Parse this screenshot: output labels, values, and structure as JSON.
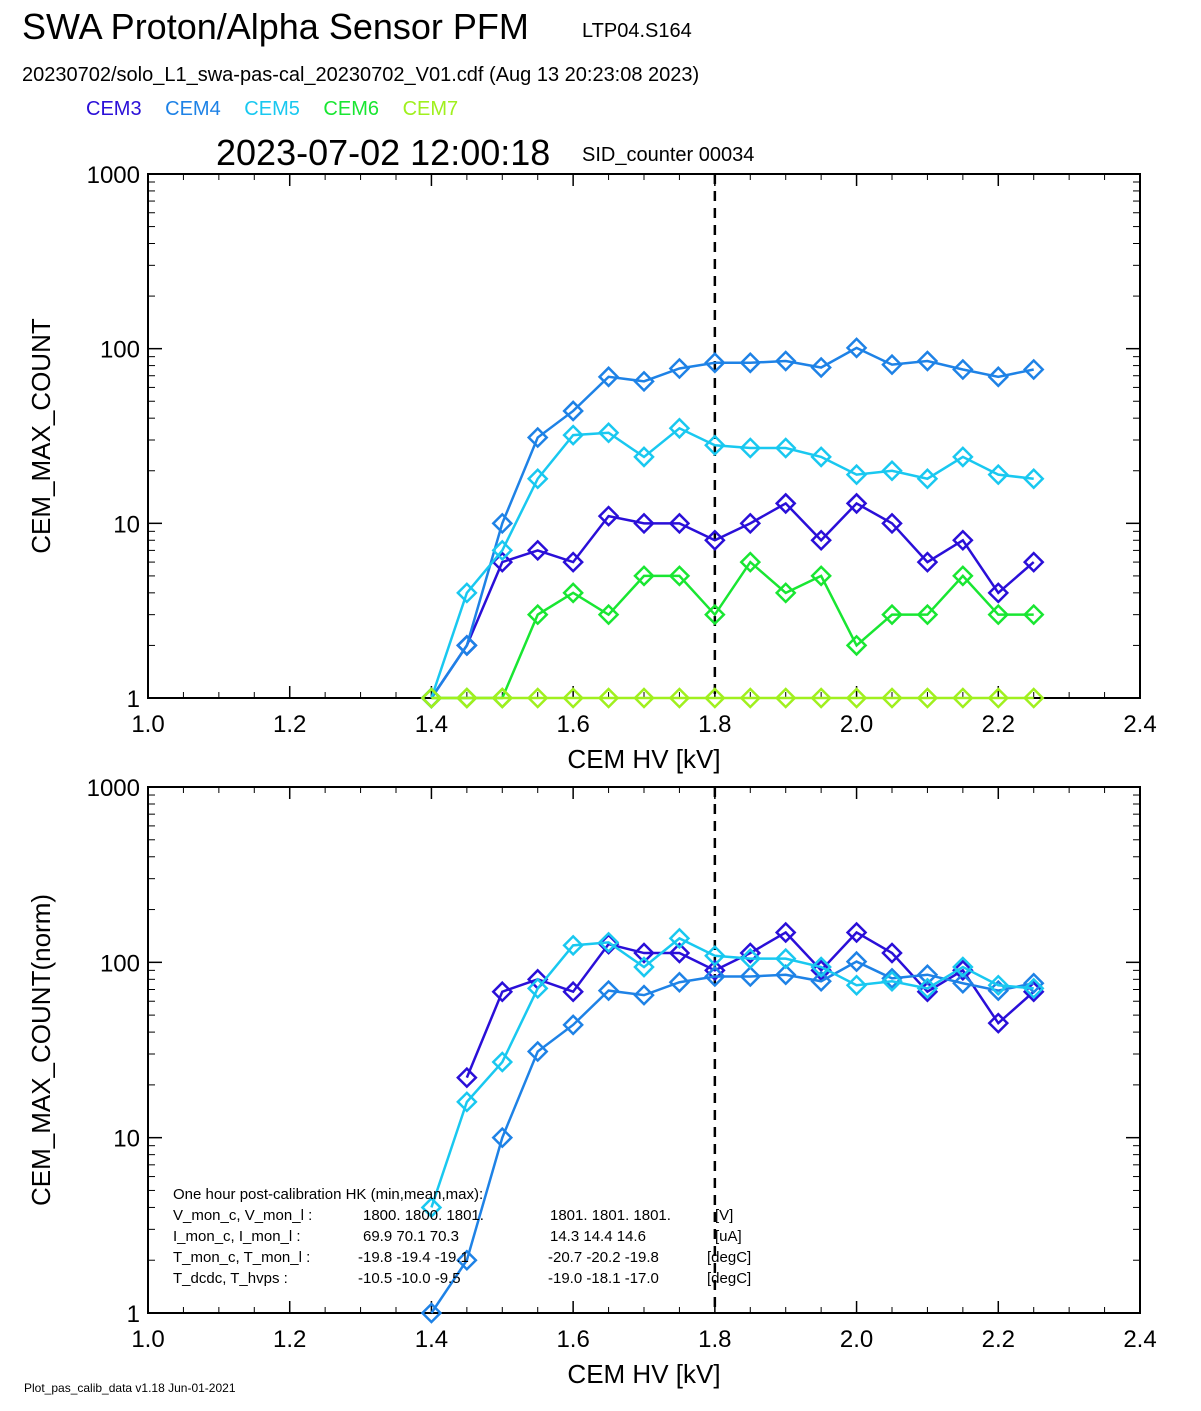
{
  "header": {
    "title": "SWA Proton/Alpha Sensor PFM",
    "id_label": "LTP04.S164",
    "file_line": "20230702/solo_L1_swa-pas-cal_20230702_V01.cdf  (Aug 13 20:23:08 2023)",
    "timestamp": "2023-07-02 12:00:18",
    "sid": "SID_counter 00034"
  },
  "legend": [
    {
      "name": "CEM3",
      "color": "#2a0fd8"
    },
    {
      "name": "CEM4",
      "color": "#1e82e6"
    },
    {
      "name": "CEM5",
      "color": "#19c8f0"
    },
    {
      "name": "CEM6",
      "color": "#19e632"
    },
    {
      "name": "CEM7",
      "color": "#a0f01e"
    }
  ],
  "hk_box": {
    "title": "One hour post-calibration HK (min,mean,max):",
    "rows": [
      {
        "label": "V_mon_c, V_mon_l :",
        "c": "1800.   1800.   1801.",
        "l": "1801.  1801.  1801.",
        "unit": "[V]"
      },
      {
        "label": "I_mon_c,  I_mon_l :",
        "c": "69.9   70.1   70.3",
        "l": "14.3   14.4   14.6",
        "unit": "[uA]"
      },
      {
        "label": "T_mon_c, T_mon_l :",
        "c": "-19.8  -19.4  -19.1",
        "l": "-20.7  -20.2  -19.8",
        "unit": "[degC]"
      },
      {
        "label": "T_dcdc,    T_hvps :",
        "c": "-10.5  -10.0   -9.5",
        "l": "-19.0  -18.1  -17.0",
        "unit": "[degC]"
      }
    ]
  },
  "footer": "Plot_pas_calib_data v1.18 Jun-01-2021",
  "chart_data": [
    {
      "type": "line",
      "xlabel": "CEM HV [kV]",
      "ylabel": "CEM_MAX_COUNT",
      "xlim": [
        1.0,
        2.4
      ],
      "ylim": [
        1,
        1000
      ],
      "yscale": "log",
      "xticks": [
        "1.0",
        "1.2",
        "1.4",
        "1.6",
        "1.8",
        "2.0",
        "2.2",
        "2.4"
      ],
      "yticks": [
        "1",
        "10",
        "100",
        "1000"
      ],
      "vline_x": 1.8,
      "x": [
        1.4,
        1.45,
        1.5,
        1.55,
        1.6,
        1.65,
        1.7,
        1.75,
        1.8,
        1.85,
        1.9,
        1.95,
        2.0,
        2.05,
        2.1,
        2.15,
        2.2,
        2.25
      ],
      "series": [
        {
          "name": "CEM3",
          "values": [
            1,
            2,
            6,
            7,
            6,
            11,
            10,
            10,
            8,
            10,
            13,
            8,
            13,
            10,
            6,
            8,
            4,
            6
          ]
        },
        {
          "name": "CEM4",
          "values": [
            1,
            2,
            10,
            31,
            44,
            69,
            65,
            77,
            83,
            83,
            85,
            78,
            101,
            81,
            85,
            76,
            69,
            76
          ]
        },
        {
          "name": "CEM5",
          "values": [
            1,
            4,
            7,
            18,
            32,
            33,
            24,
            35,
            28,
            27,
            27,
            24,
            19,
            20,
            18,
            24,
            19,
            18
          ]
        },
        {
          "name": "CEM6",
          "values": [
            1,
            1,
            1,
            3,
            4,
            3,
            5,
            5,
            3,
            6,
            4,
            5,
            2,
            3,
            3,
            5,
            3,
            3
          ]
        },
        {
          "name": "CEM7",
          "values": [
            1,
            1,
            1,
            1,
            1,
            1,
            1,
            1,
            1,
            1,
            1,
            1,
            1,
            1,
            1,
            1,
            1,
            1
          ]
        }
      ]
    },
    {
      "type": "line",
      "xlabel": "CEM HV [kV]",
      "ylabel": "CEM_MAX_COUNT(norm)",
      "xlim": [
        1.0,
        2.4
      ],
      "ylim": [
        1,
        1000
      ],
      "yscale": "log",
      "xticks": [
        "1.0",
        "1.2",
        "1.4",
        "1.6",
        "1.8",
        "2.0",
        "2.2",
        "2.4"
      ],
      "yticks": [
        "1",
        "10",
        "100",
        "1000"
      ],
      "vline_x": 1.8,
      "series": [
        {
          "name": "CEM3",
          "x": [
            1.45,
            1.5,
            1.55,
            1.6,
            1.65,
            1.7,
            1.75,
            1.8,
            1.85,
            1.9,
            1.95,
            2.0,
            2.05,
            2.1,
            2.15,
            2.2,
            2.25
          ],
          "values": [
            22,
            68,
            80,
            68,
            127,
            113,
            113,
            90,
            113,
            148,
            90,
            148,
            113,
            68,
            90,
            45,
            68
          ]
        },
        {
          "name": "CEM4",
          "x": [
            1.4,
            1.45,
            1.5,
            1.55,
            1.6,
            1.65,
            1.7,
            1.75,
            1.8,
            1.85,
            1.9,
            1.95,
            2.0,
            2.05,
            2.1,
            2.15,
            2.2,
            2.25
          ],
          "values": [
            1,
            2,
            10,
            31,
            44,
            69,
            65,
            77,
            83,
            83,
            85,
            78,
            101,
            81,
            85,
            76,
            69,
            76
          ]
        },
        {
          "name": "CEM5",
          "x": [
            1.4,
            1.45,
            1.5,
            1.55,
            1.6,
            1.65,
            1.7,
            1.75,
            1.8,
            1.85,
            1.9,
            1.95,
            2.0,
            2.05,
            2.1,
            2.15,
            2.2,
            2.25
          ],
          "values": [
            4,
            16,
            27,
            71,
            125,
            130,
            94,
            137,
            109,
            105,
            105,
            94,
            74,
            78,
            71,
            94,
            74,
            71
          ]
        }
      ]
    }
  ]
}
